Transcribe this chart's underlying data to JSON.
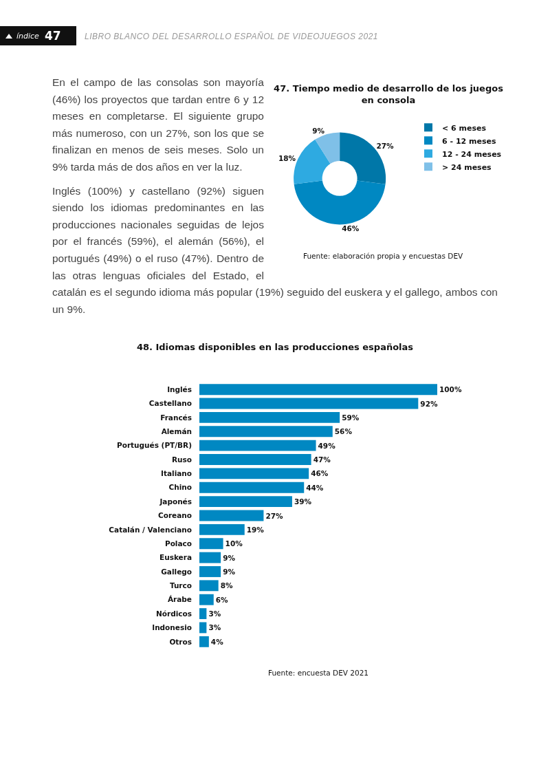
{
  "chart_data": [
    {
      "type": "other",
      "annotations": [
        "índice",
        "47",
        "LIBRO BLANCO DEL DESARROLLO ESPAÑOL DE VIDEOJUEGOS 2021",
        "En el campo de las consolas son mayoría (46%) los proyectos que tardan entre 6 y 12 meses en completarse. El siguiente grupo más numeroso, con un 27%, son los que se finalizan en menos de seis meses. Solo un 9% tarda más de dos años en ver la luz.",
        "Inglés (100%) y castellano (92%) siguen siendo los idiomas predominantes en las producciones nacionales seguidas de lejos por el francés (59%), el alemán (56%), el portugués (49%) o el ruso (47%). Dentro de las otras lenguas oficiales del Estado, el catalán es el segundo idioma más popular (19%) seguido del euskera y el gallego, ambos con un 9%."
      ]
    },
    {
      "type": "donut",
      "title": "47. Tiempo medio de desarrollo de los juegos en consola",
      "categories": [
        "< 6 meses",
        "6 - 12 meses",
        "12 - 24 meses",
        "> 24 meses"
      ],
      "values": [
        27,
        46,
        18,
        9
      ],
      "value_labels": [
        "27%",
        "46%",
        "18%",
        "9%"
      ],
      "colors": [
        "#0077a8",
        "#0088c2",
        "#2eaae1",
        "#7fc0e8"
      ],
      "legend": "right",
      "annotations": [
        "Fuente: elaboración propia y encuestas DEV"
      ]
    },
    {
      "type": "bar",
      "orientation": "horizontal",
      "title": "48. Idiomas disponibles en las producciones españolas",
      "categories": [
        "Inglés",
        "Castellano",
        "Francés",
        "Alemán",
        "Portugués (PT/BR)",
        "Ruso",
        "Italiano",
        "Chino",
        "Japonés",
        "Coreano",
        "Catalán / Valenciano",
        "Polaco",
        "Euskera",
        "Gallego",
        "Turco",
        "Árabe",
        "Nórdicos",
        "Indonesio",
        "Otros"
      ],
      "values": [
        100,
        92,
        59,
        56,
        49,
        47,
        46,
        44,
        39,
        27,
        19,
        10,
        9,
        9,
        8,
        6,
        3,
        3,
        4
      ],
      "value_labels": [
        "100%",
        "92%",
        "59%",
        "56%",
        "49%",
        "47%",
        "46%",
        "44%",
        "39%",
        "27%",
        "19%",
        "10%",
        "9%",
        "9%",
        "8%",
        "6%",
        "3%",
        "3%",
        "4%"
      ],
      "color": "#0088c2",
      "annotations": [
        "Fuente: encuesta DEV 2021"
      ]
    }
  ]
}
